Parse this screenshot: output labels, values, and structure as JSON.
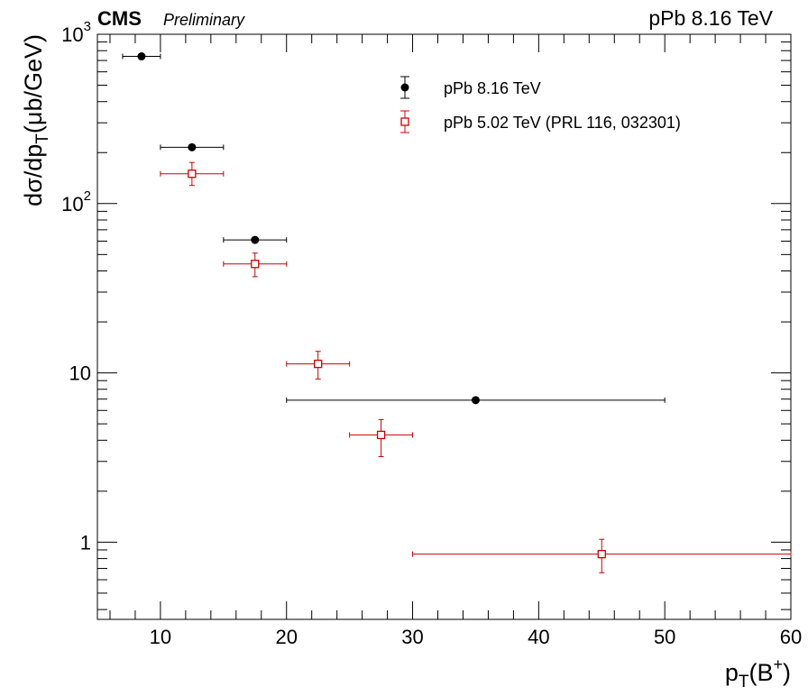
{
  "header": {
    "experiment": "CMS",
    "status": "Preliminary",
    "system": "pPb 8.16 TeV"
  },
  "chart_data": {
    "type": "scatter",
    "title": "",
    "xlabel": {
      "main": "p",
      "sub": "T",
      "paren_open": "(B",
      "sup": "+",
      "paren_close": ")"
    },
    "ylabel": {
      "main": "dσ/dp",
      "sub": "T",
      "rest": "(μb/GeV)"
    },
    "xlim": [
      5,
      60
    ],
    "ylim": [
      0.35,
      1000
    ],
    "yscale": "log",
    "x_ticks": [
      10,
      20,
      30,
      40,
      50,
      60
    ],
    "y_ticks": [
      {
        "value": 1,
        "label": "1"
      },
      {
        "value": 10,
        "label": "10"
      },
      {
        "value": 100,
        "label": "10",
        "exp": "2"
      },
      {
        "value": 1000,
        "label": "10",
        "exp": "3"
      }
    ],
    "legend_position": "top-right",
    "series": [
      {
        "name": "pPb 8.16 TeV",
        "marker": "filled-circle",
        "color": "#000000",
        "points": [
          {
            "x": 8.5,
            "xlo": 7,
            "xhi": 10,
            "y": 740,
            "ylo": 740,
            "yhi": 740
          },
          {
            "x": 12.5,
            "xlo": 10,
            "xhi": 15,
            "y": 215,
            "ylo": 215,
            "yhi": 215
          },
          {
            "x": 17.5,
            "xlo": 15,
            "xhi": 20,
            "y": 61,
            "ylo": 61,
            "yhi": 61
          },
          {
            "x": 35,
            "xlo": 20,
            "xhi": 50,
            "y": 6.9,
            "ylo": 6.9,
            "yhi": 6.9
          }
        ]
      },
      {
        "name": "pPb 5.02 TeV (PRL 116, 032301)",
        "marker": "open-square",
        "color": "#cc0000",
        "points": [
          {
            "x": 12.5,
            "xlo": 10,
            "xhi": 15,
            "y": 150,
            "ylo": 128,
            "yhi": 175
          },
          {
            "x": 17.5,
            "xlo": 15,
            "xhi": 20,
            "y": 44,
            "ylo": 37,
            "yhi": 51
          },
          {
            "x": 22.5,
            "xlo": 20,
            "xhi": 25,
            "y": 11.3,
            "ylo": 9.2,
            "yhi": 13.4
          },
          {
            "x": 27.5,
            "xlo": 25,
            "xhi": 30,
            "y": 4.3,
            "ylo": 3.2,
            "yhi": 5.3
          },
          {
            "x": 45,
            "xlo": 30,
            "xhi": 60,
            "y": 0.85,
            "ylo": 0.66,
            "yhi": 1.04
          }
        ]
      }
    ]
  }
}
